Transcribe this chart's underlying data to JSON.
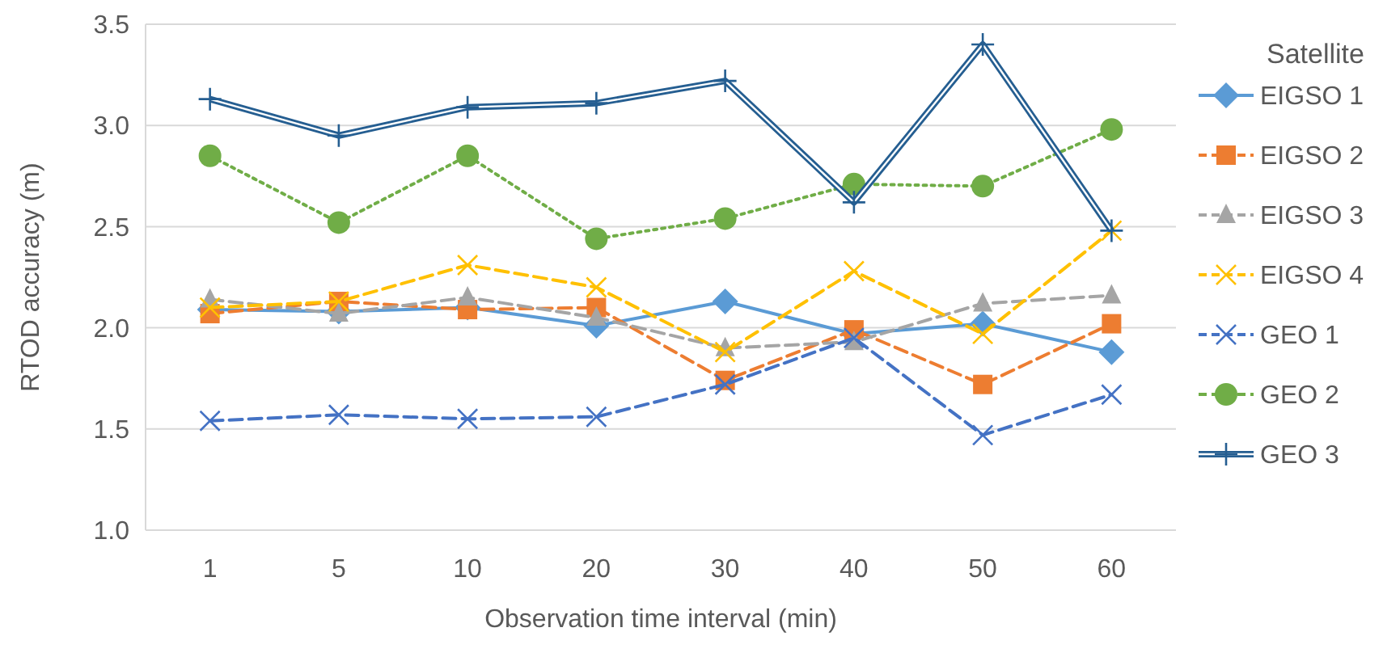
{
  "chart_data": {
    "type": "line",
    "xlabel": "Observation time interval (min)",
    "ylabel": "RTOD accuracy (m)",
    "legend_title": "Satellite",
    "categories": [
      "1",
      "5",
      "10",
      "20",
      "30",
      "40",
      "50",
      "60"
    ],
    "ylim": [
      1.0,
      3.5
    ],
    "yticks": [
      {
        "value": 1.0,
        "label": "1.0"
      },
      {
        "value": 1.5,
        "label": "1.5"
      },
      {
        "value": 2.0,
        "label": "2.0"
      },
      {
        "value": 2.5,
        "label": "2.5"
      },
      {
        "value": 3.0,
        "label": "3.0"
      },
      {
        "value": 3.5,
        "label": "3.5"
      }
    ],
    "grid": "y",
    "legend": "right",
    "series": [
      {
        "name": "EIGSO 1",
        "color": "#5b9bd5",
        "marker": "diamond",
        "line_style": "solid",
        "values": [
          2.09,
          2.08,
          2.1,
          2.01,
          2.13,
          1.97,
          2.02,
          1.88
        ]
      },
      {
        "name": "EIGSO 2",
        "color": "#ed7d31",
        "marker": "square",
        "line_style": "dashed",
        "values": [
          2.07,
          2.13,
          2.09,
          2.1,
          1.74,
          1.99,
          1.72,
          2.02
        ]
      },
      {
        "name": "EIGSO 3",
        "color": "#a5a5a5",
        "marker": "triangle",
        "line_style": "dashed",
        "values": [
          2.14,
          2.07,
          2.15,
          2.05,
          1.9,
          1.93,
          2.12,
          2.16
        ]
      },
      {
        "name": "EIGSO 4",
        "color": "#ffc000",
        "marker": "cross",
        "line_style": "dashed",
        "values": [
          2.1,
          2.13,
          2.31,
          2.2,
          1.88,
          2.28,
          1.97,
          2.48
        ]
      },
      {
        "name": "GEO 1",
        "color": "#4472c4",
        "marker": "cross",
        "line_style": "dashed",
        "values": [
          1.54,
          1.57,
          1.55,
          1.56,
          1.72,
          1.95,
          1.47,
          1.67
        ]
      },
      {
        "name": "GEO 2",
        "color": "#70ad47",
        "marker": "circle",
        "line_style": "dotted",
        "values": [
          2.85,
          2.52,
          2.85,
          2.44,
          2.54,
          2.71,
          2.7,
          2.98
        ]
      },
      {
        "name": "GEO 3",
        "color": "#255e91",
        "marker": "plus",
        "line_style": "solid",
        "values": [
          3.13,
          2.95,
          3.09,
          3.11,
          3.22,
          2.62,
          3.4,
          2.48
        ]
      }
    ]
  }
}
